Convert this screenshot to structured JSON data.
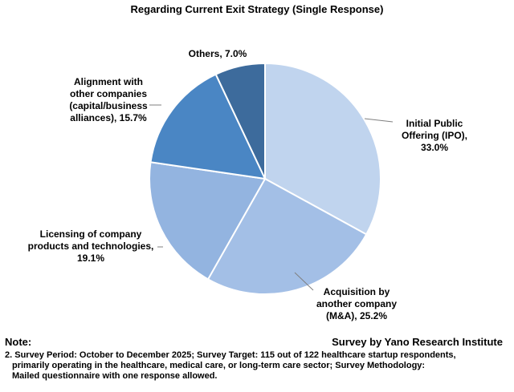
{
  "chart_data": {
    "type": "pie",
    "title": "Regarding Current Exit Strategy (Single Response)",
    "slices": [
      {
        "label_lines": [
          "Initial Public",
          "Offering (IPO),",
          "33.0%"
        ],
        "value": 33.0,
        "color": "#c0d4ee"
      },
      {
        "label_lines": [
          "Acquisition by",
          "another company",
          "(M&A), 25.2%"
        ],
        "value": 25.2,
        "color": "#a3bfe6"
      },
      {
        "label_lines": [
          "Licensing of company",
          "products and technologies,",
          "19.1%"
        ],
        "value": 19.1,
        "color": "#93b4e0"
      },
      {
        "label_lines": [
          "Alignment with",
          "other companies",
          "(capital/business",
          "alliances), 15.7%"
        ],
        "value": 15.7,
        "color": "#4a86c4"
      },
      {
        "label_lines": [
          "Others, 7.0%"
        ],
        "value": 7.0,
        "color": "#3d6b9c"
      }
    ]
  },
  "note": {
    "label": "Note:",
    "source": "Survey by Yano Research Institute",
    "footnote_lines": [
      "2. Survey Period: October to December 2025; Survey Target: 115 out of 122 healthcare startup respondents,",
      "primarily operating in the healthcare, medical care, or long-term care sector; Survey Methodology:",
      "Mailed questionnaire with one response allowed."
    ]
  }
}
